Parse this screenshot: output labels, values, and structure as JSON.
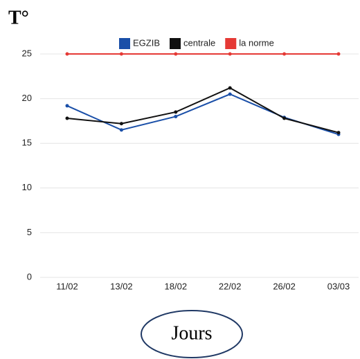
{
  "chart_data": {
    "type": "line",
    "title": "T°",
    "x_label": "Jours",
    "categories": [
      "11/02",
      "13/02",
      "18/02",
      "22/02",
      "26/02",
      "03/03"
    ],
    "series": [
      {
        "name": "EGZIB",
        "color": "#1a4fa8",
        "values": [
          19.2,
          16.5,
          18.0,
          20.5,
          17.9,
          16.0
        ]
      },
      {
        "name": "centrale",
        "color": "#111111",
        "values": [
          17.8,
          17.2,
          18.5,
          21.2,
          17.8,
          16.2
        ]
      },
      {
        "name": "la norme",
        "color": "#e53935",
        "values": [
          25,
          25,
          25,
          25,
          25,
          25
        ]
      }
    ],
    "ylim": [
      0,
      25
    ],
    "yticks": [
      0,
      5,
      10,
      15,
      20,
      25
    ],
    "grid": true,
    "legend": "top"
  }
}
